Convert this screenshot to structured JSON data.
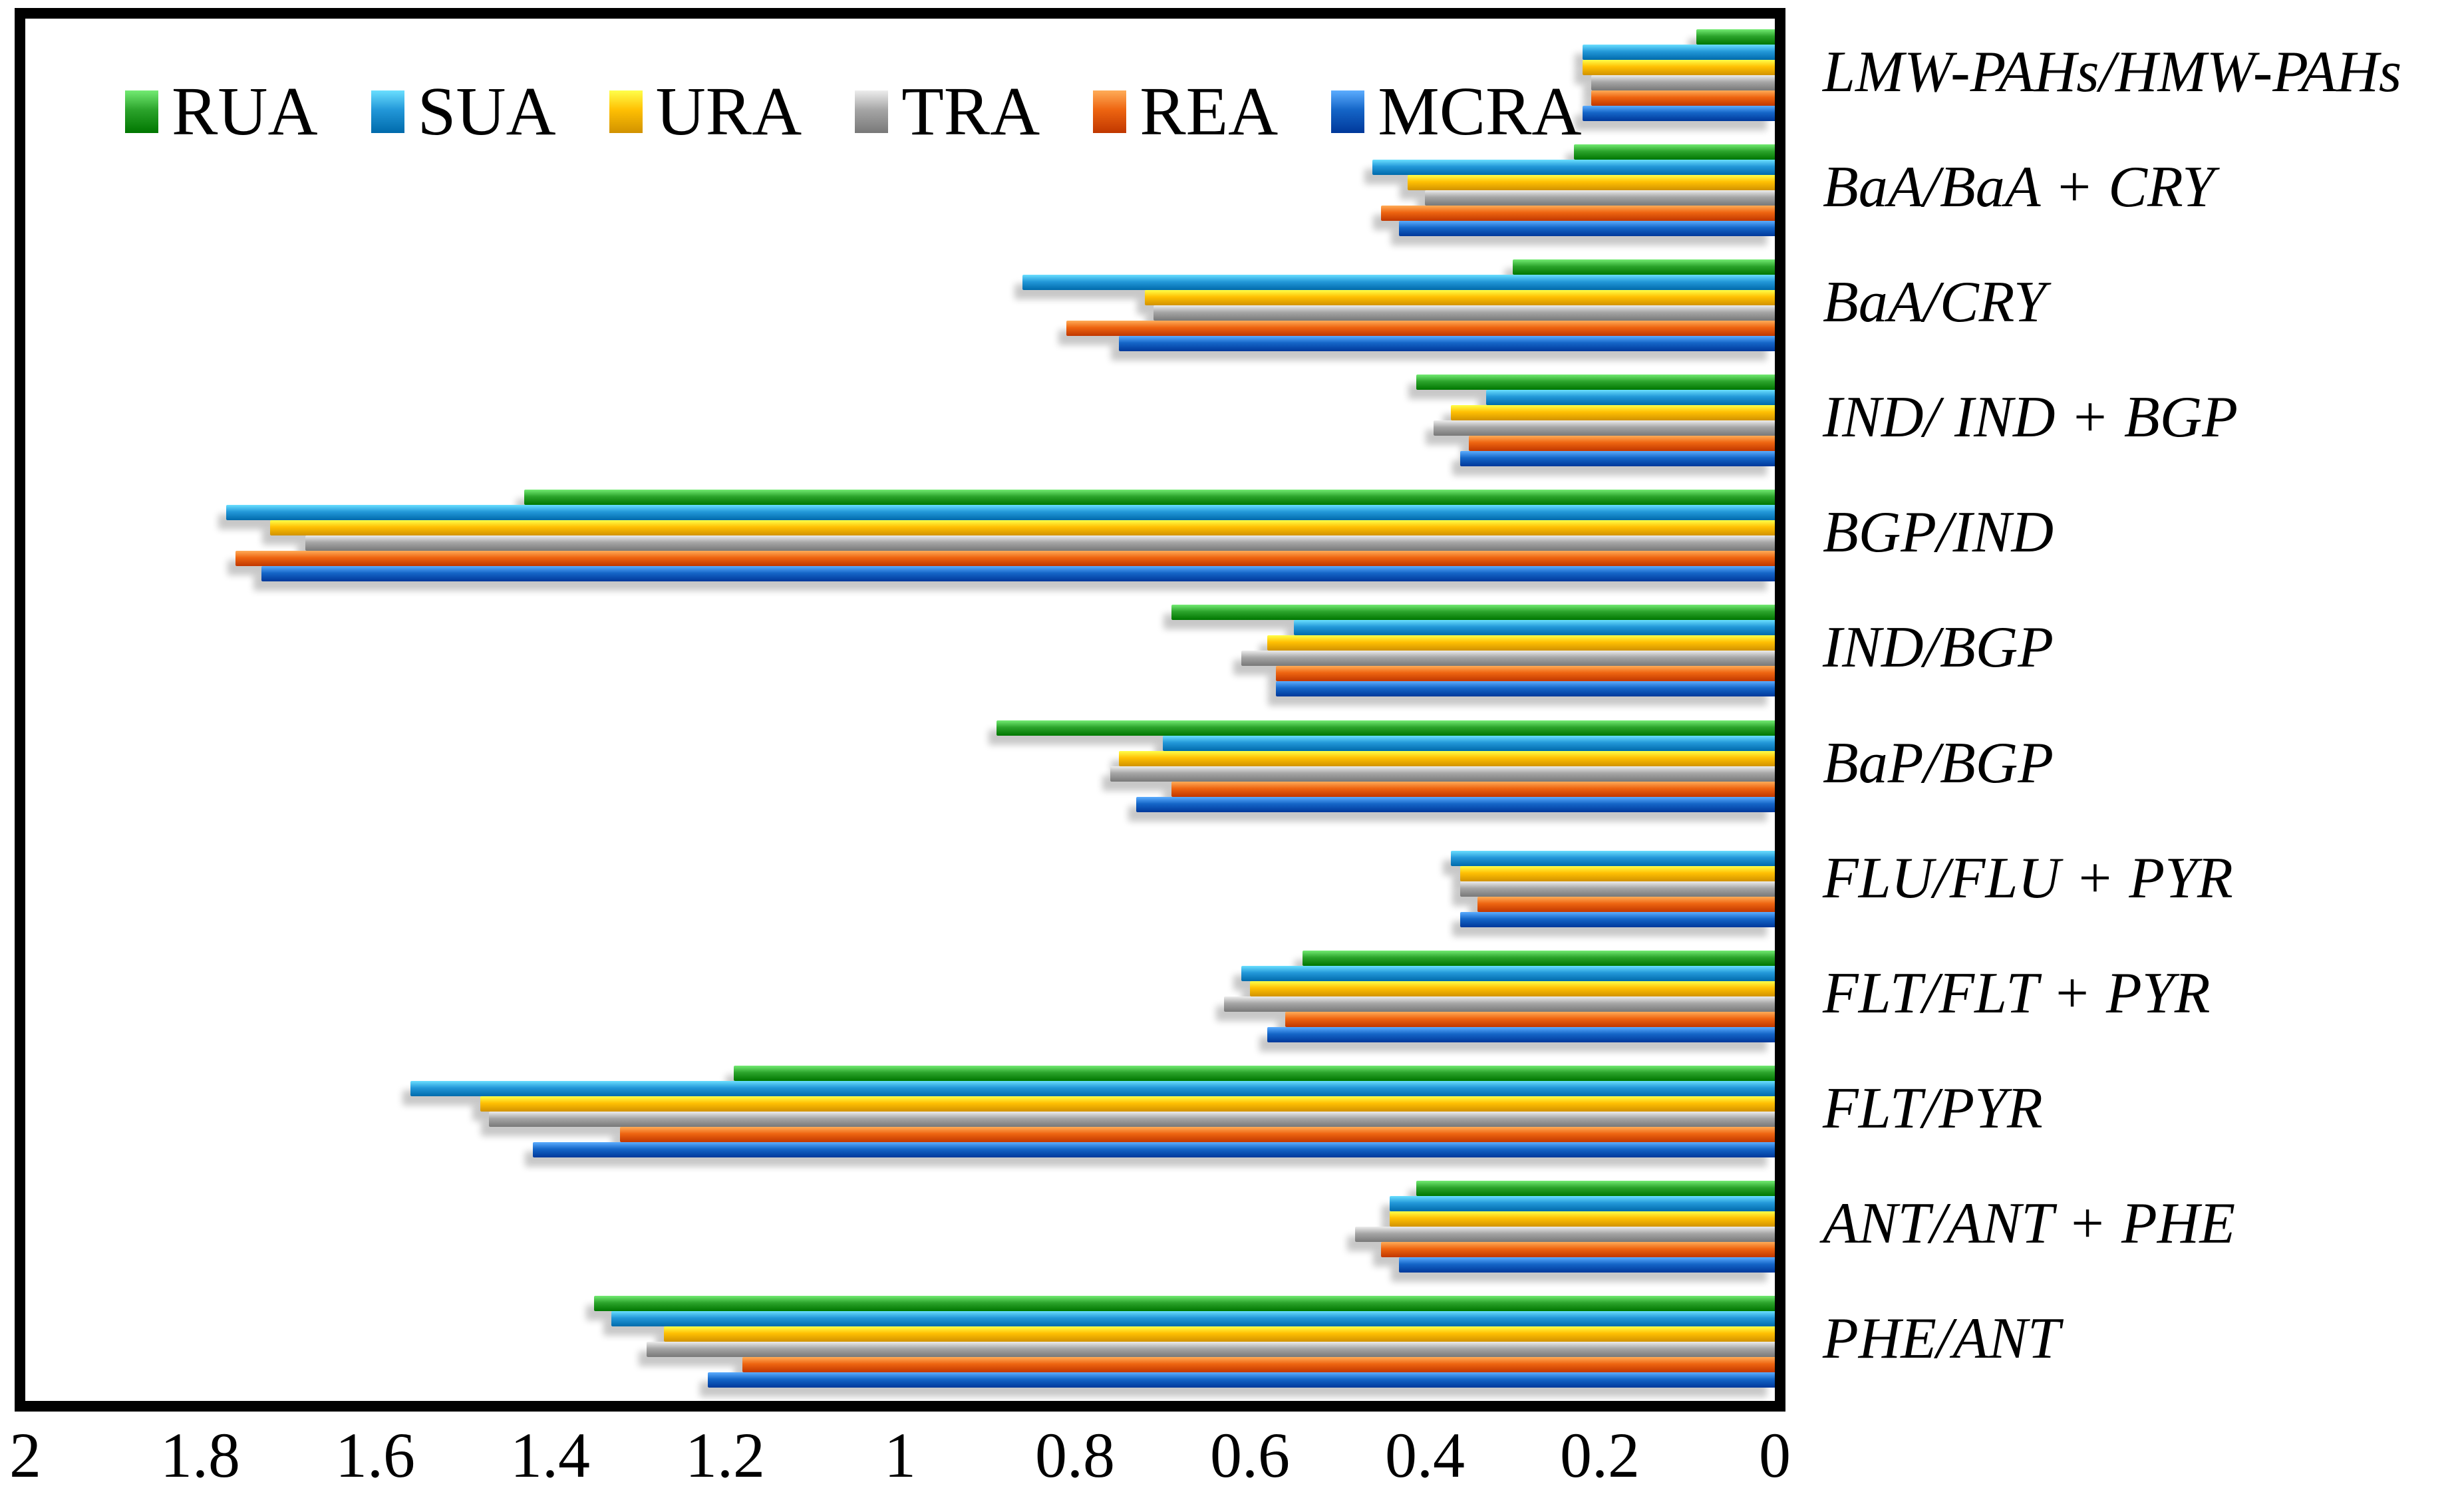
{
  "figure": {
    "background": "#ffffff",
    "border_color": "#000000"
  },
  "legend": {
    "position": "top-left-inside",
    "items": [
      {
        "label": "RUA",
        "color": "#2CA42C"
      },
      {
        "label": "SUA",
        "color": "#2398D9"
      },
      {
        "label": "URA",
        "color": "#FFC003"
      },
      {
        "label": "TRA",
        "color": "#A6A6A6"
      },
      {
        "label": "REA",
        "color": "#EE6511"
      },
      {
        "label": "MCRA",
        "color": "#1566C8"
      }
    ]
  },
  "chart_data": {
    "type": "bar",
    "orientation": "horizontal",
    "axis_reversed": true,
    "grid": false,
    "xlim": [
      0,
      2
    ],
    "x_ticks": [
      "2",
      "1.8",
      "1.6",
      "1.4",
      "1.2",
      "1",
      "0.8",
      "0.6",
      "0.4",
      "0.2",
      "0"
    ],
    "x_tick_values": [
      2,
      1.8,
      1.6,
      1.4,
      1.2,
      1,
      0.8,
      0.6,
      0.4,
      0.2,
      0
    ],
    "categories": [
      "LMW-PAHs/HMW-PAHs",
      "BaA/BaA + CRY",
      "BaA/CRY",
      "IND/ IND + BGP",
      "BGP/IND",
      "IND/BGP",
      "BaP/BGP",
      "FLU/FLU + PYR",
      "FLT/FLT + PYR",
      "FLT/PYR",
      "ANT/ANT + PHE",
      "PHE/ANT"
    ],
    "series": [
      {
        "name": "RUA",
        "color": "#2CA42C",
        "values": [
          0.09,
          0.23,
          0.3,
          0.41,
          1.43,
          0.69,
          0.89,
          0,
          0.54,
          1.19,
          0.41,
          1.35
        ]
      },
      {
        "name": "SUA",
        "color": "#2398D9",
        "values": [
          0.22,
          0.46,
          0.86,
          0.33,
          1.77,
          0.55,
          0.7,
          0.37,
          0.61,
          1.56,
          0.44,
          1.33
        ]
      },
      {
        "name": "URA",
        "color": "#FFC003",
        "values": [
          0.22,
          0.42,
          0.72,
          0.37,
          1.72,
          0.58,
          0.75,
          0.36,
          0.6,
          1.48,
          0.44,
          1.27
        ]
      },
      {
        "name": "TRA",
        "color": "#A6A6A6",
        "values": [
          0.21,
          0.4,
          0.71,
          0.39,
          1.68,
          0.61,
          0.76,
          0.36,
          0.63,
          1.47,
          0.48,
          1.29
        ]
      },
      {
        "name": "REA",
        "color": "#EE6511",
        "values": [
          0.21,
          0.45,
          0.81,
          0.35,
          1.76,
          0.57,
          0.69,
          0.34,
          0.56,
          1.32,
          0.45,
          1.18
        ]
      },
      {
        "name": "MCRA",
        "color": "#1566C8",
        "values": [
          0.22,
          0.43,
          0.75,
          0.36,
          1.73,
          0.57,
          0.73,
          0.36,
          0.58,
          1.42,
          0.43,
          1.22
        ]
      }
    ],
    "title": "",
    "xlabel": "",
    "ylabel": ""
  }
}
